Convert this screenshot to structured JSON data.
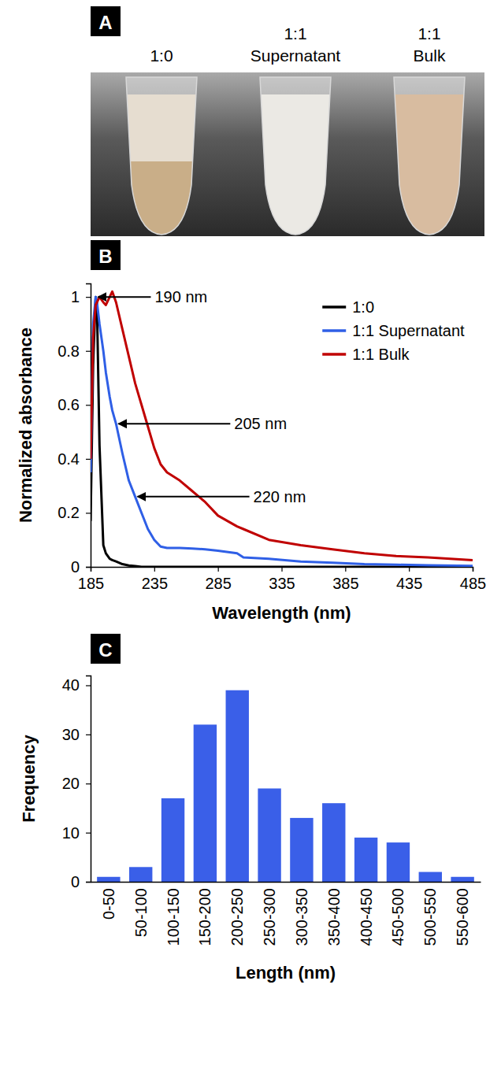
{
  "photo": {
    "panel_label": "A",
    "labels": [
      "1:0",
      "1:1 Supernatant",
      "1:1 Bulk"
    ]
  },
  "chart_data": [
    {
      "panel_label": "B",
      "type": "line",
      "x_label": "Wavelength (nm)",
      "y_label": "Normalized absorbance",
      "x": [
        185,
        187,
        189,
        190,
        192,
        195,
        197,
        200,
        202,
        205,
        210,
        215,
        220,
        225,
        230,
        235,
        240,
        245,
        255,
        265,
        275,
        285,
        300,
        305,
        325,
        350,
        375,
        400,
        425,
        450,
        485
      ],
      "xlim": [
        185,
        485
      ],
      "xticks": [
        185,
        235,
        285,
        335,
        385,
        435,
        485
      ],
      "ylim": [
        0,
        1.05
      ],
      "yticks": [
        0,
        0.2,
        0.4,
        0.6,
        0.8,
        1
      ],
      "legend": "upper right",
      "series": [
        {
          "name": "1:0",
          "color": "#000000",
          "values": [
            0.17,
            0.75,
            1.0,
            0.97,
            0.45,
            0.08,
            0.05,
            0.03,
            0.025,
            0.02,
            0.01,
            0.005,
            0.003,
            0,
            0,
            0,
            0,
            0,
            0,
            0,
            0,
            0,
            0,
            0,
            0,
            0,
            0,
            0,
            0,
            0,
            0
          ]
        },
        {
          "name": "1:1 Supernatant",
          "color": "#2f5fe6",
          "values": [
            0.35,
            0.9,
            1.0,
            0.98,
            0.9,
            0.8,
            0.72,
            0.63,
            0.58,
            0.53,
            0.42,
            0.32,
            0.26,
            0.2,
            0.14,
            0.1,
            0.075,
            0.07,
            0.07,
            0.068,
            0.065,
            0.06,
            0.05,
            0.035,
            0.03,
            0.02,
            0.015,
            0.01,
            0.008,
            0.006,
            0.004
          ]
        },
        {
          "name": "1:1 Bulk",
          "color": "#c00000",
          "values": [
            0.4,
            0.85,
            0.97,
            0.98,
            1.0,
            0.98,
            0.97,
            1.0,
            1.02,
            0.98,
            0.88,
            0.78,
            0.68,
            0.6,
            0.52,
            0.44,
            0.38,
            0.35,
            0.32,
            0.28,
            0.24,
            0.19,
            0.15,
            0.14,
            0.1,
            0.08,
            0.065,
            0.05,
            0.04,
            0.035,
            0.025
          ]
        }
      ],
      "annotations": [
        {
          "text": "190 nm",
          "x": 189,
          "y": 1.0
        },
        {
          "text": "205 nm",
          "x": 205,
          "y": 0.53
        },
        {
          "text": "220 nm",
          "x": 220,
          "y": 0.26
        }
      ]
    },
    {
      "panel_label": "C",
      "type": "bar",
      "x_label": "Length (nm)",
      "y_label": "Frequency",
      "categories": [
        "0-50",
        "50-100",
        "100-150",
        "150-200",
        "200-250",
        "250-300",
        "300-350",
        "350-400",
        "400-450",
        "450-500",
        "500-550",
        "550-600"
      ],
      "values": [
        1,
        3,
        17,
        32,
        39,
        19,
        13,
        16,
        9,
        8,
        2,
        1
      ],
      "color": "#3a5fe8",
      "ylim": [
        0,
        42
      ],
      "yticks": [
        0,
        10,
        20,
        30,
        40
      ]
    }
  ]
}
